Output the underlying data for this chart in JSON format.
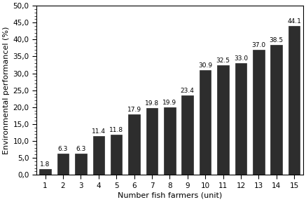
{
  "categories": [
    1,
    2,
    3,
    4,
    5,
    6,
    7,
    8,
    9,
    10,
    11,
    12,
    13,
    14,
    15
  ],
  "values": [
    1.8,
    6.3,
    6.3,
    11.4,
    11.8,
    17.9,
    19.8,
    19.9,
    23.4,
    30.9,
    32.5,
    33.0,
    37.0,
    38.5,
    44.1
  ],
  "bar_color": "#2d2d2d",
  "xlabel": "Number fish farmers (unit)",
  "ylabel": "Environmental performancel (%)",
  "ylim": [
    0,
    50
  ],
  "yticks": [
    0.0,
    5.0,
    10.0,
    15.0,
    20.0,
    25.0,
    30.0,
    35.0,
    40.0,
    45.0,
    50.0
  ],
  "background_color": "#ffffff",
  "label_fontsize": 6.5,
  "axis_label_fontsize": 8,
  "tick_fontsize": 7.5
}
